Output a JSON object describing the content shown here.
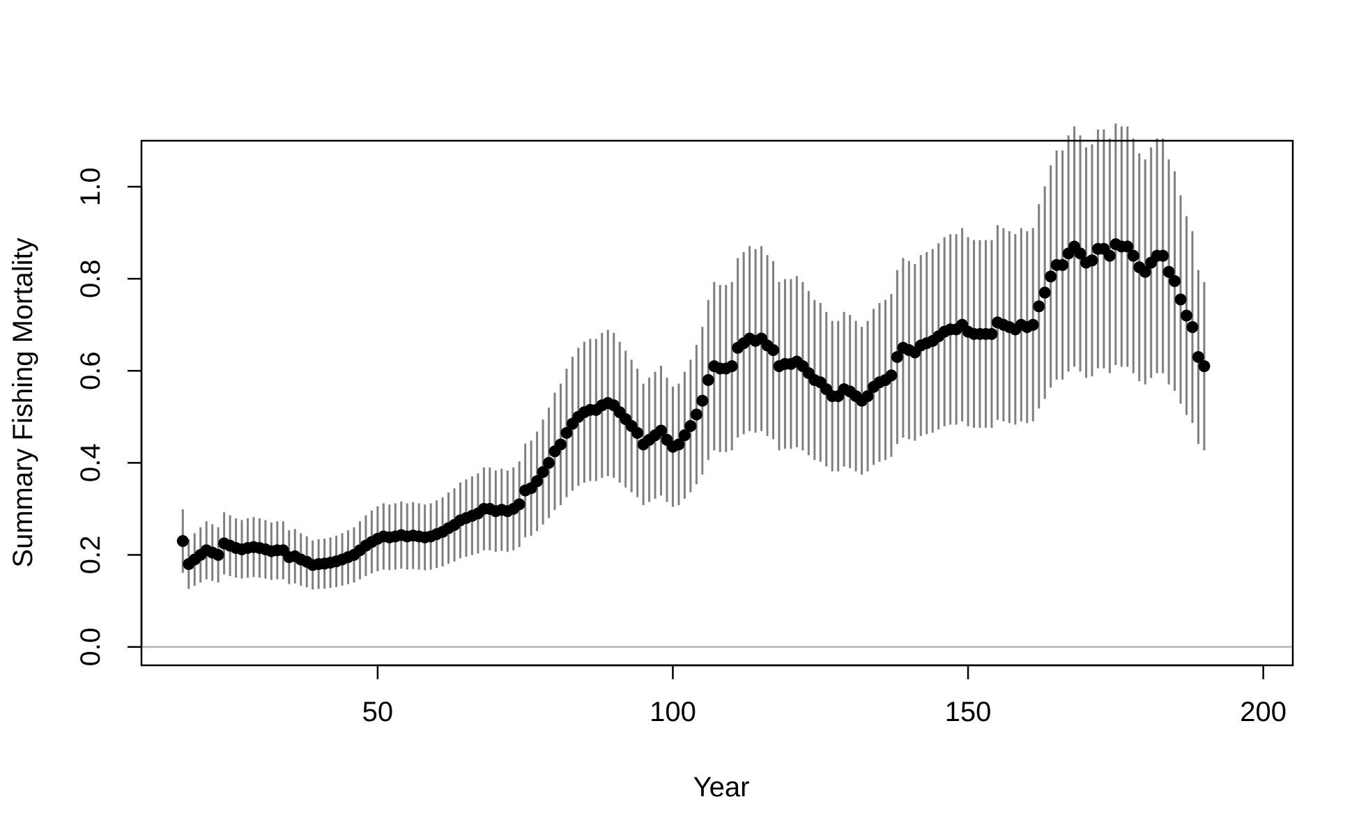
{
  "chart_data": {
    "type": "scatter",
    "title": "",
    "xlabel": "Year",
    "ylabel": "Summary Fishing Mortality",
    "xlim": [
      10,
      205
    ],
    "ylim": [
      -0.04,
      1.1
    ],
    "xticks": [
      50,
      100,
      150,
      200
    ],
    "yticks": [
      0.0,
      0.2,
      0.4,
      0.6,
      0.8,
      1.0
    ],
    "xtick_labels": [
      "50",
      "100",
      "150",
      "200"
    ],
    "ytick_labels": [
      "0.0",
      "0.2",
      "0.4",
      "0.6",
      "0.8",
      "1.0"
    ],
    "reference_line": 0.0,
    "colors": {
      "points": "#000000",
      "error_bars": "#7f7f7f",
      "reference_line": "#bebebe",
      "box": "#000000"
    },
    "series": [
      {
        "x_start": 17,
        "y": [
          0.23,
          0.18,
          0.19,
          0.2,
          0.21,
          0.205,
          0.2,
          0.225,
          0.22,
          0.215,
          0.212,
          0.215,
          0.217,
          0.215,
          0.212,
          0.208,
          0.21,
          0.21,
          0.195,
          0.197,
          0.19,
          0.185,
          0.178,
          0.18,
          0.181,
          0.183,
          0.186,
          0.19,
          0.195,
          0.2,
          0.21,
          0.22,
          0.228,
          0.235,
          0.24,
          0.238,
          0.24,
          0.243,
          0.24,
          0.242,
          0.24,
          0.238,
          0.24,
          0.245,
          0.25,
          0.258,
          0.265,
          0.275,
          0.28,
          0.285,
          0.29,
          0.3,
          0.3,
          0.295,
          0.298,
          0.295,
          0.3,
          0.31,
          0.34,
          0.345,
          0.36,
          0.38,
          0.4,
          0.425,
          0.44,
          0.465,
          0.485,
          0.5,
          0.51,
          0.515,
          0.515,
          0.525,
          0.53,
          0.525,
          0.51,
          0.495,
          0.48,
          0.465,
          0.44,
          0.45,
          0.46,
          0.47,
          0.45,
          0.435,
          0.44,
          0.46,
          0.48,
          0.505,
          0.535,
          0.58,
          0.61,
          0.605,
          0.605,
          0.61,
          0.65,
          0.66,
          0.67,
          0.665,
          0.67,
          0.655,
          0.645,
          0.61,
          0.615,
          0.615,
          0.62,
          0.61,
          0.595,
          0.58,
          0.575,
          0.56,
          0.545,
          0.545,
          0.56,
          0.555,
          0.545,
          0.535,
          0.545,
          0.565,
          0.575,
          0.58,
          0.59,
          0.63,
          0.65,
          0.645,
          0.64,
          0.655,
          0.66,
          0.665,
          0.675,
          0.685,
          0.69,
          0.69,
          0.7,
          0.685,
          0.68,
          0.68,
          0.68,
          0.68,
          0.705,
          0.7,
          0.695,
          0.69,
          0.7,
          0.695,
          0.7,
          0.74,
          0.77,
          0.805,
          0.83,
          0.83,
          0.855,
          0.87,
          0.855,
          0.835,
          0.84,
          0.865,
          0.865,
          0.85,
          0.875,
          0.87,
          0.87,
          0.85,
          0.825,
          0.815,
          0.835,
          0.85,
          0.85,
          0.815,
          0.795,
          0.755,
          0.72,
          0.695,
          0.63,
          0.61
        ],
        "ci_half_width_scale": 0.3
      }
    ]
  }
}
